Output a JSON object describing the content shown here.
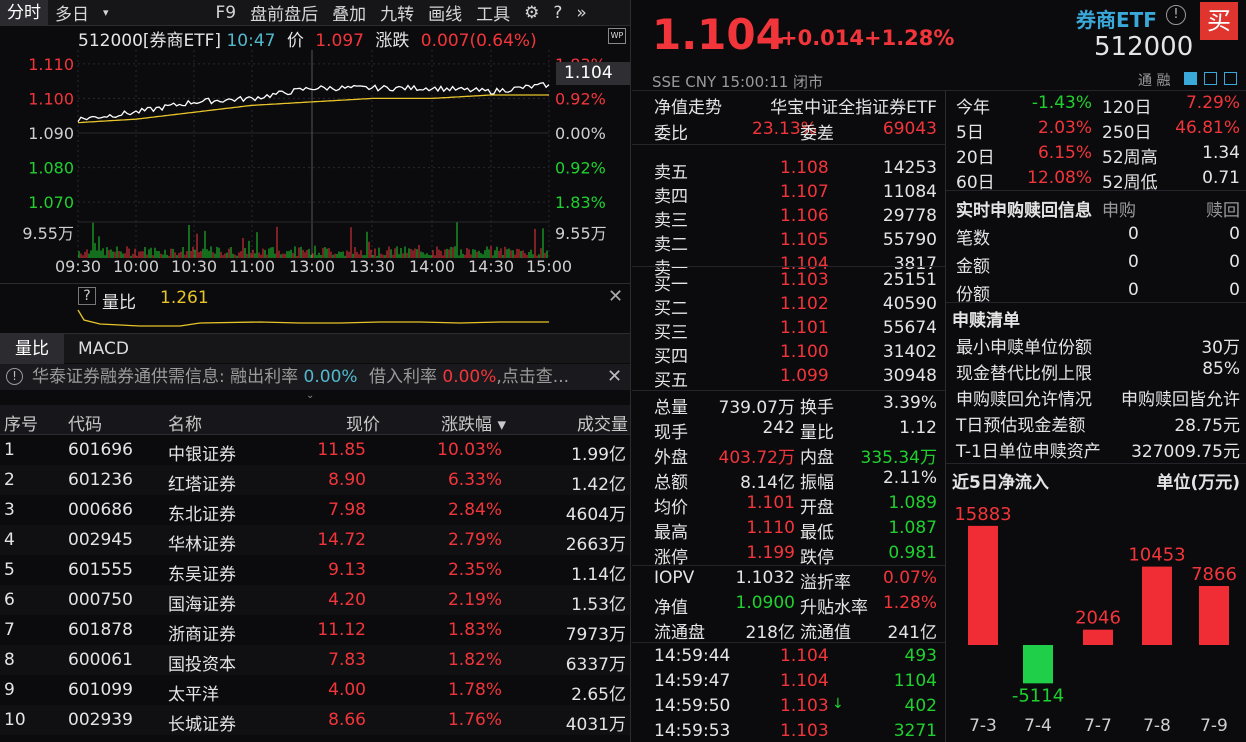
{
  "toolbar": {
    "tabs": [
      "分时",
      "多日",
      "▾",
      "F9",
      "盘前盘后",
      "叠加",
      "九转",
      "画线",
      "工具"
    ],
    "icons": [
      "gear-icon",
      "help-icon",
      "collapse-icon"
    ]
  },
  "chart": {
    "info_code": "512000[券商ETF]",
    "time": "10:47",
    "price_label": "价",
    "price": "1.097",
    "change_label": "涨跌",
    "change": "0.007(0.64%)",
    "y_left": [
      "1.110",
      "1.100",
      "1.090",
      "1.080",
      "1.070"
    ],
    "y_right": [
      "1.83%",
      "0.92%",
      "0.00%",
      "0.92%",
      "1.83%"
    ],
    "vol_left": "9.55万",
    "vol_right": "9.55万",
    "x_labels": [
      "09:30",
      "10:00",
      "10:30",
      "11:00",
      "13:00",
      "13:30",
      "14:00",
      "14:30",
      "15:00"
    ],
    "current_tag": "1.104",
    "wp": "WP"
  },
  "chart_data": {
    "type": "line",
    "title": "512000[券商ETF]",
    "x": [
      "09:30",
      "10:00",
      "10:30",
      "11:00",
      "13:00",
      "13:30",
      "14:00",
      "14:30",
      "15:00"
    ],
    "series": [
      {
        "name": "价",
        "values": [
          1.094,
          1.096,
          1.099,
          1.1,
          1.103,
          1.103,
          1.103,
          1.102,
          1.104
        ]
      },
      {
        "values": [
          1.093,
          1.094,
          1.096,
          1.098,
          1.099,
          1.1,
          1.1,
          1.101,
          1.101
        ]
      }
    ],
    "ylim": [
      1.066,
      1.114
    ],
    "grid": true
  },
  "volratio": {
    "q": "?",
    "label": "量比",
    "value": "1.261"
  },
  "subtabs": [
    "量比",
    "MACD"
  ],
  "notice": {
    "text1": "华泰证券融券通供需信息:",
    "rate1_label": "融出利率",
    "rate1": "0.00%",
    "rate2_label": "借入利率",
    "rate2": "0.00%",
    "tail": ",点击查..."
  },
  "table": {
    "headers": [
      "序号",
      "代码",
      "名称",
      "现价",
      "涨跌幅 ▾",
      "成交量"
    ],
    "rows": [
      [
        "1",
        "601696",
        "中银证券",
        "11.85",
        "10.03%",
        "1.99亿"
      ],
      [
        "2",
        "601236",
        "红塔证券",
        "8.90",
        "6.33%",
        "1.42亿"
      ],
      [
        "3",
        "000686",
        "东北证券",
        "7.98",
        "2.84%",
        "4604万"
      ],
      [
        "4",
        "002945",
        "华林证券",
        "14.72",
        "2.79%",
        "2663万"
      ],
      [
        "5",
        "601555",
        "东吴证券",
        "9.13",
        "2.35%",
        "1.14亿"
      ],
      [
        "6",
        "000750",
        "国海证券",
        "4.20",
        "2.19%",
        "1.53亿"
      ],
      [
        "7",
        "601878",
        "浙商证券",
        "11.12",
        "1.83%",
        "7973万"
      ],
      [
        "8",
        "600061",
        "国投资本",
        "7.83",
        "1.82%",
        "6337万"
      ],
      [
        "9",
        "601099",
        "太平洋",
        "4.00",
        "1.78%",
        "2.65亿"
      ],
      [
        "10",
        "002939",
        "长城证券",
        "8.66",
        "1.76%",
        "4031万"
      ]
    ]
  },
  "quote": {
    "price": "1.104",
    "change": "+0.014",
    "pct": "+1.28%",
    "name": "券商ETF",
    "code": "512000",
    "buy": "买",
    "meta": "SSE  CNY  15:00:11  闭市",
    "tags": "通  融",
    "nav_trend": "净值走势",
    "index": "华宝中证全指证券ETF",
    "weibi_label": "委比",
    "weibi": "23.13%",
    "weicha_label": "委差",
    "weicha": "69043",
    "sells": [
      [
        "卖五",
        "1.108",
        "14253"
      ],
      [
        "卖四",
        "1.107",
        "11084"
      ],
      [
        "卖三",
        "1.106",
        "29778"
      ],
      [
        "卖二",
        "1.105",
        "55790"
      ],
      [
        "卖一",
        "1.104",
        "3817"
      ]
    ],
    "buys": [
      [
        "买一",
        "1.103",
        "25151"
      ],
      [
        "买二",
        "1.102",
        "40590"
      ],
      [
        "买三",
        "1.101",
        "55674"
      ],
      [
        "买四",
        "1.100",
        "31402"
      ],
      [
        "买五",
        "1.099",
        "30948"
      ]
    ],
    "stats": [
      [
        "总量",
        "739.07万",
        "换手",
        "3.39%"
      ],
      [
        "现手",
        "242",
        "量比",
        "1.12"
      ],
      [
        "外盘",
        "403.72万",
        "内盘",
        "335.34万"
      ],
      [
        "总额",
        "8.14亿",
        "振幅",
        "2.11%"
      ],
      [
        "均价",
        "1.101",
        "开盘",
        "1.089"
      ],
      [
        "最高",
        "1.110",
        "最低",
        "1.087"
      ],
      [
        "涨停",
        "1.199",
        "跌停",
        "0.981"
      ]
    ],
    "iopv": [
      [
        "IOPV",
        "1.1032",
        "溢折率",
        "0.07%"
      ],
      [
        "净值",
        "1.0900",
        "升贴水率",
        "1.28%"
      ],
      [
        "流通盘",
        "218亿",
        "流通值",
        "241亿"
      ]
    ],
    "ticks": [
      [
        "14:59:44",
        "1.104",
        "",
        "493"
      ],
      [
        "14:59:47",
        "1.104",
        "",
        "1104"
      ],
      [
        "14:59:50",
        "1.103",
        "↓",
        "402"
      ],
      [
        "14:59:53",
        "1.103",
        "",
        "3271"
      ]
    ]
  },
  "perf": [
    [
      "今年",
      "-1.43%",
      "120日",
      "7.29%"
    ],
    [
      "5日",
      "2.03%",
      "250日",
      "46.81%"
    ],
    [
      "20日",
      "6.15%",
      "52周高",
      "1.34"
    ],
    [
      "60日",
      "12.08%",
      "52周低",
      "0.71"
    ]
  ],
  "realtime": {
    "title": "实时申购赎回信息",
    "c1": "申购",
    "c2": "赎回",
    "rows": [
      [
        "笔数",
        "0",
        "0"
      ],
      [
        "金额",
        "0",
        "0"
      ],
      [
        "份额",
        "0",
        "0"
      ]
    ]
  },
  "redeem": {
    "title": "申赎清单",
    "rows": [
      [
        "最小申赎单位份额",
        "30万"
      ],
      [
        "现金替代比例上限",
        "85%"
      ],
      [
        "申购赎回允许情况",
        "申购赎回皆允许"
      ],
      [
        "T日预估现金差额",
        "28.75元"
      ],
      [
        "T-1日单位申赎资产",
        "327009.75元"
      ]
    ]
  },
  "flow": {
    "title": "近5日净流入",
    "unit": "单位(万元)",
    "days": [
      "7-3",
      "7-4",
      "7-7",
      "7-8",
      "7-9"
    ],
    "values": [
      15883,
      -5114,
      2046,
      10453,
      7866
    ],
    "labels": [
      "15883",
      "-5114",
      "2046",
      "10453",
      "7866"
    ]
  }
}
